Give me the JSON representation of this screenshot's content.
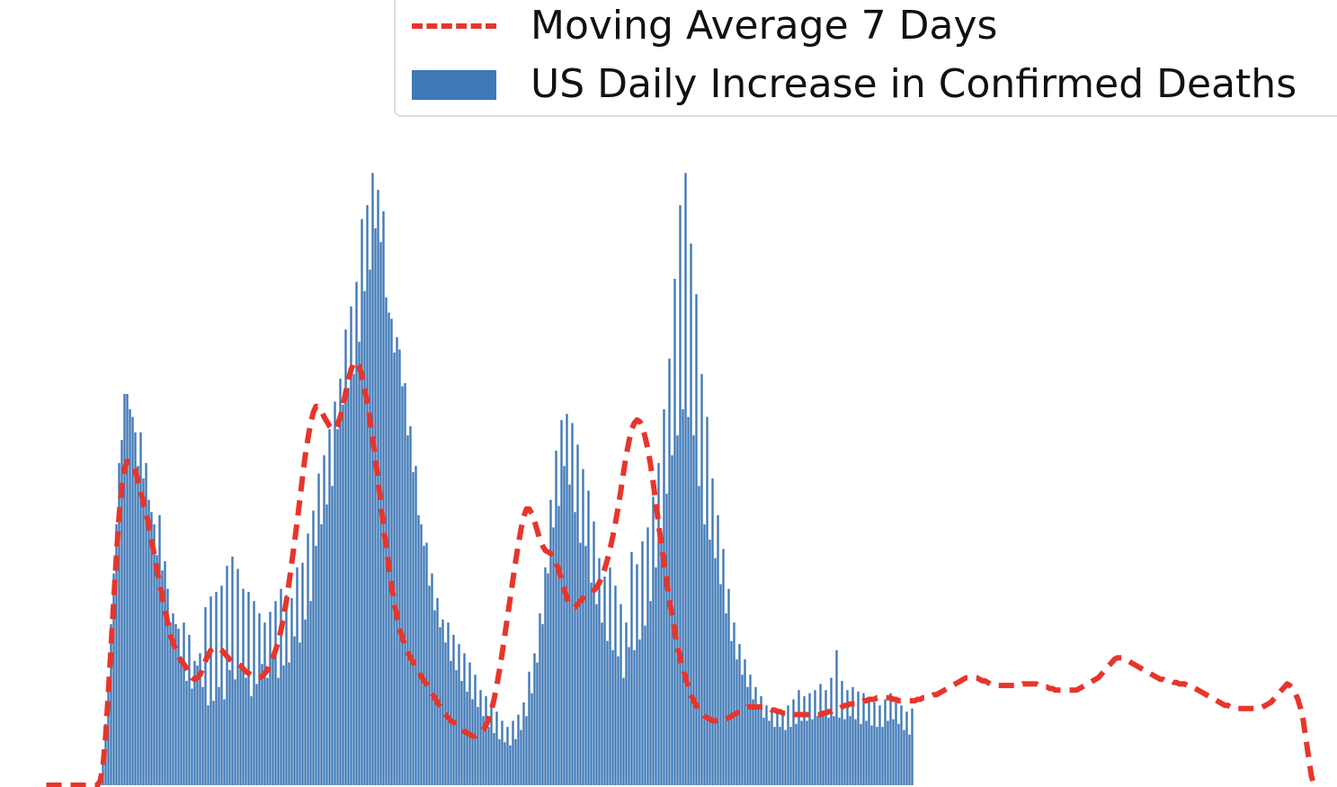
{
  "legend": {
    "moving_average_label": "Moving Average 7 Days",
    "daily_label": "US Daily Increase in Confirmed Deaths"
  },
  "colors": {
    "bars": "#3f78b5",
    "moving_average": "#e8352b",
    "background": "#ffffff"
  },
  "chart_data": {
    "type": "bar",
    "legend_position": "top-right",
    "grid": false,
    "xlim": [
      0,
      470
    ],
    "ylim": [
      0,
      5000
    ],
    "series": [
      {
        "name": "US Daily Increase in Confirmed Deaths",
        "type": "bar",
        "x_start": 0,
        "values": [
          0,
          0,
          0,
          0,
          0,
          0,
          0,
          0,
          0,
          0,
          0,
          0,
          0,
          0,
          0,
          0,
          0,
          0,
          0,
          0,
          30,
          140,
          400,
          700,
          1050,
          1380,
          1700,
          2100,
          2250,
          2550,
          2550,
          2450,
          2400,
          2300,
          2080,
          2300,
          2000,
          2100,
          1860,
          1780,
          1700,
          1500,
          1760,
          1400,
          1460,
          1280,
          1060,
          1120,
          1050,
          1020,
          820,
          1060,
          680,
          980,
          630,
          810,
          780,
          860,
          640,
          1160,
          520,
          1230,
          550,
          1260,
          640,
          1300,
          560,
          1430,
          750,
          1490,
          690,
          1410,
          760,
          1280,
          700,
          1260,
          580,
          1200,
          660,
          1120,
          790,
          1060,
          700,
          1130,
          830,
          1200,
          700,
          1280,
          780,
          1240,
          800,
          1220,
          970,
          1420,
          930,
          1450,
          1080,
          1640,
          1200,
          1790,
          1560,
          2030,
          1700,
          2150,
          1830,
          2320,
          1950,
          2500,
          2320,
          2650,
          2480,
          2970,
          2590,
          3120,
          2680,
          3280,
          2890,
          3690,
          3220,
          3780,
          3360,
          3990,
          3630,
          3880,
          3540,
          3740,
          3180,
          3080,
          3040,
          2820,
          2920,
          2840,
          2600,
          2620,
          2280,
          2340,
          2040,
          2080,
          1760,
          1700,
          1560,
          1580,
          1300,
          1380,
          1140,
          1220,
          1030,
          1080,
          930,
          1060,
          810,
          980,
          750,
          920,
          680,
          860,
          610,
          800,
          560,
          720,
          510,
          620,
          450,
          580,
          380,
          520,
          340,
          480,
          300,
          420,
          280,
          380,
          260,
          420,
          300,
          460,
          360,
          540,
          450,
          740,
          600,
          860,
          800,
          1120,
          1050,
          1420,
          1380,
          1860,
          1680,
          2180,
          1820,
          2380,
          2080,
          2420,
          1960,
          2360,
          1780,
          2220,
          1580,
          2060,
          1560,
          1920,
          1320,
          1720,
          1180,
          1480,
          1060,
          1360,
          940,
          1420,
          880,
          1300,
          840,
          1180,
          700,
          1060,
          900,
          1520,
          880,
          1440,
          950,
          1590,
          1040,
          1680,
          1200,
          1880,
          1420,
          2100,
          1650,
          2450,
          1900,
          2780,
          2150,
          3300,
          2280,
          3780,
          2450,
          3990,
          2400,
          3530,
          2280,
          3200,
          1950,
          2680,
          1700,
          2400,
          1600,
          2000,
          1480,
          1760,
          1310,
          1540,
          1120,
          1280,
          940,
          1060,
          820,
          920,
          720,
          820,
          640,
          720,
          560,
          640,
          500,
          580,
          440,
          520,
          420,
          500,
          380,
          500,
          380,
          480,
          360,
          520,
          380,
          560,
          400,
          620,
          420,
          580,
          420,
          600,
          430,
          620,
          450,
          660,
          460,
          620,
          440,
          700,
          450,
          880,
          440,
          680,
          430,
          620,
          450,
          640,
          430,
          610,
          400,
          600,
          420,
          560,
          390,
          540,
          380,
          520,
          380,
          560,
          420,
          600,
          430,
          560,
          400,
          520,
          360,
          480,
          330,
          500
        ]
      },
      {
        "name": "Moving Average 7 Days",
        "type": "line",
        "style": "dashed",
        "x_start": 0,
        "values": [
          0,
          0,
          0,
          0,
          0,
          0,
          0,
          0,
          0,
          0,
          0,
          0,
          0,
          0,
          0,
          0,
          0,
          0,
          0,
          0,
          30,
          120,
          320,
          600,
          900,
          1200,
          1500,
          1760,
          1950,
          2060,
          2110,
          2110,
          2090,
          2050,
          1980,
          1920,
          1840,
          1780,
          1690,
          1600,
          1500,
          1400,
          1320,
          1230,
          1150,
          1060,
          980,
          930,
          880,
          840,
          810,
          790,
          760,
          730,
          700,
          690,
          700,
          720,
          760,
          810,
          850,
          880,
          890,
          900,
          890,
          880,
          860,
          840,
          820,
          810,
          800,
          790,
          780,
          760,
          740,
          730,
          720,
          710,
          700,
          700,
          710,
          730,
          750,
          790,
          830,
          880,
          940,
          1010,
          1100,
          1200,
          1320,
          1450,
          1580,
          1720,
          1860,
          2010,
          2150,
          2260,
          2360,
          2430,
          2470,
          2460,
          2440,
          2400,
          2370,
          2340,
          2320,
          2320,
          2350,
          2400,
          2470,
          2560,
          2640,
          2710,
          2750,
          2760,
          2730,
          2670,
          2590,
          2490,
          2380,
          2260,
          2130,
          1990,
          1840,
          1690,
          1550,
          1420,
          1300,
          1190,
          1100,
          1020,
          960,
          910,
          870,
          830,
          800,
          770,
          740,
          710,
          680,
          660,
          630,
          600,
          570,
          540,
          510,
          480,
          460,
          440,
          420,
          410,
          390,
          370,
          360,
          350,
          340,
          330,
          320,
          320,
          330,
          340,
          360,
          390,
          430,
          490,
          560,
          650,
          750,
          860,
          980,
          1100,
          1220,
          1340,
          1460,
          1570,
          1670,
          1750,
          1800,
          1800,
          1770,
          1720,
          1660,
          1600,
          1560,
          1530,
          1520,
          1510,
          1490,
          1450,
          1400,
          1340,
          1280,
          1220,
          1180,
          1160,
          1160,
          1180,
          1200,
          1220,
          1240,
          1250,
          1260,
          1270,
          1290,
          1320,
          1360,
          1410,
          1470,
          1540,
          1620,
          1710,
          1810,
          1920,
          2040,
          2150,
          2240,
          2320,
          2360,
          2380,
          2370,
          2330,
          2270,
          2190,
          2090,
          1970,
          1840,
          1700,
          1570,
          1450,
          1330,
          1210,
          1100,
          1000,
          910,
          830,
          760,
          700,
          640,
          590,
          550,
          520,
          490,
          470,
          450,
          440,
          430,
          420,
          420,
          420,
          420,
          420,
          430,
          440,
          450,
          460,
          470,
          480,
          490,
          500,
          510,
          510,
          510,
          510,
          510,
          510,
          510,
          510,
          500,
          490,
          490,
          480,
          480,
          470,
          470,
          460,
          460,
          460,
          460,
          460,
          460,
          460,
          460,
          460,
          460,
          460,
          460,
          460,
          470,
          470,
          480,
          480,
          490,
          490,
          500,
          510,
          520,
          520,
          530,
          530,
          530,
          540,
          540,
          550,
          550,
          560,
          560,
          560,
          570,
          570,
          570,
          570,
          570,
          570,
          560,
          560,
          550,
          550,
          550,
          550,
          550,
          550,
          550,
          560,
          560,
          570,
          570,
          580,
          580,
          590,
          590,
          600,
          610,
          620,
          630,
          640,
          650,
          660,
          670,
          680,
          690,
          700,
          700,
          700,
          700,
          700,
          690,
          680,
          680,
          670,
          660,
          650,
          650,
          650,
          650,
          650,
          650,
          650,
          650,
          650,
          650,
          650,
          660,
          660,
          660,
          660,
          660,
          660,
          650,
          650,
          640,
          640,
          630,
          630,
          620,
          620,
          620,
          620,
          620,
          620,
          620,
          620,
          620,
          630,
          640,
          650,
          660,
          670,
          680,
          690,
          700,
          720,
          740,
          760,
          780,
          800,
          820,
          830,
          830,
          830,
          820,
          810,
          800,
          790,
          780,
          770,
          760,
          750,
          740,
          730,
          720,
          710,
          700,
          690,
          690,
          680,
          680,
          680,
          670,
          670,
          660,
          660,
          660,
          650,
          650,
          640,
          630,
          620,
          610,
          600,
          590,
          580,
          570,
          560,
          550,
          540,
          530,
          520,
          520,
          510,
          510,
          500,
          500,
          500,
          500,
          500,
          500,
          500,
          500,
          500,
          500,
          510,
          520,
          530,
          540,
          560,
          580,
          600,
          620,
          640,
          660,
          650,
          630,
          600,
          560,
          500,
          420,
          300,
          180,
          60,
          0
        ]
      }
    ]
  }
}
